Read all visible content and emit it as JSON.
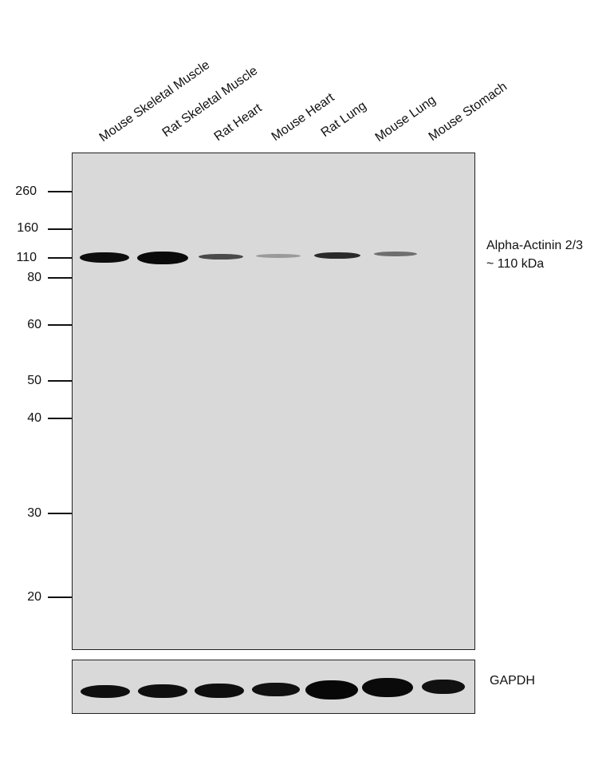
{
  "lanes": [
    "Mouse Skeletal Muscle",
    "Rat Skeletal Muscle",
    "Rat Heart",
    "Mouse Heart",
    "Rat Lung",
    "Mouse Lung",
    "Mouse Stomach"
  ],
  "markers": [
    "260",
    "160",
    "110",
    "80",
    "60",
    "50",
    "40",
    "30",
    "20"
  ],
  "target": {
    "name": "Alpha-Actinin 2/3",
    "size": "~ 110 kDa"
  },
  "loading_control": "GAPDH",
  "colors": {
    "membrane": "#d9d9d9",
    "band": "#0d0d0d"
  }
}
